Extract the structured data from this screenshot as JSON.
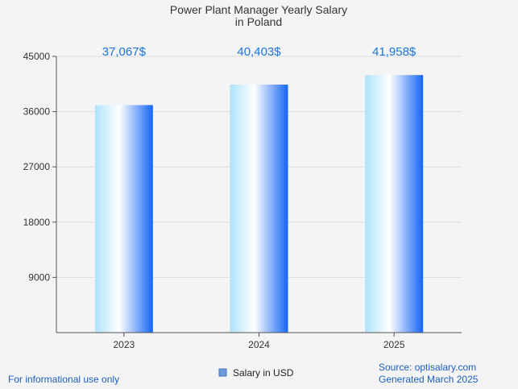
{
  "chart_data": {
    "type": "bar",
    "title_lines": [
      "Power Plant Manager Yearly Salary",
      "in Poland"
    ],
    "categories": [
      "2023",
      "2024",
      "2025"
    ],
    "series": [
      {
        "name": "Salary in USD",
        "values": [
          37067,
          40403,
          41958
        ]
      }
    ],
    "data_labels": [
      "37,067$",
      "40,403$",
      "41,958$"
    ],
    "y_ticks": [
      "9000",
      "18000",
      "27000",
      "36000",
      "45000"
    ],
    "ylim": [
      0,
      45000
    ],
    "grid": true,
    "legend_position": "bottom-center"
  },
  "colors": {
    "bar_light": "#aee3fb",
    "bar_mid": "#ffffff",
    "bar_dark": "#1565f5",
    "label": "#1e73d6",
    "footer": "#1a5fc0"
  },
  "footer": {
    "left": "For informational use only",
    "source": "Source: optisalary.com",
    "generated": "Generated March 2025"
  }
}
